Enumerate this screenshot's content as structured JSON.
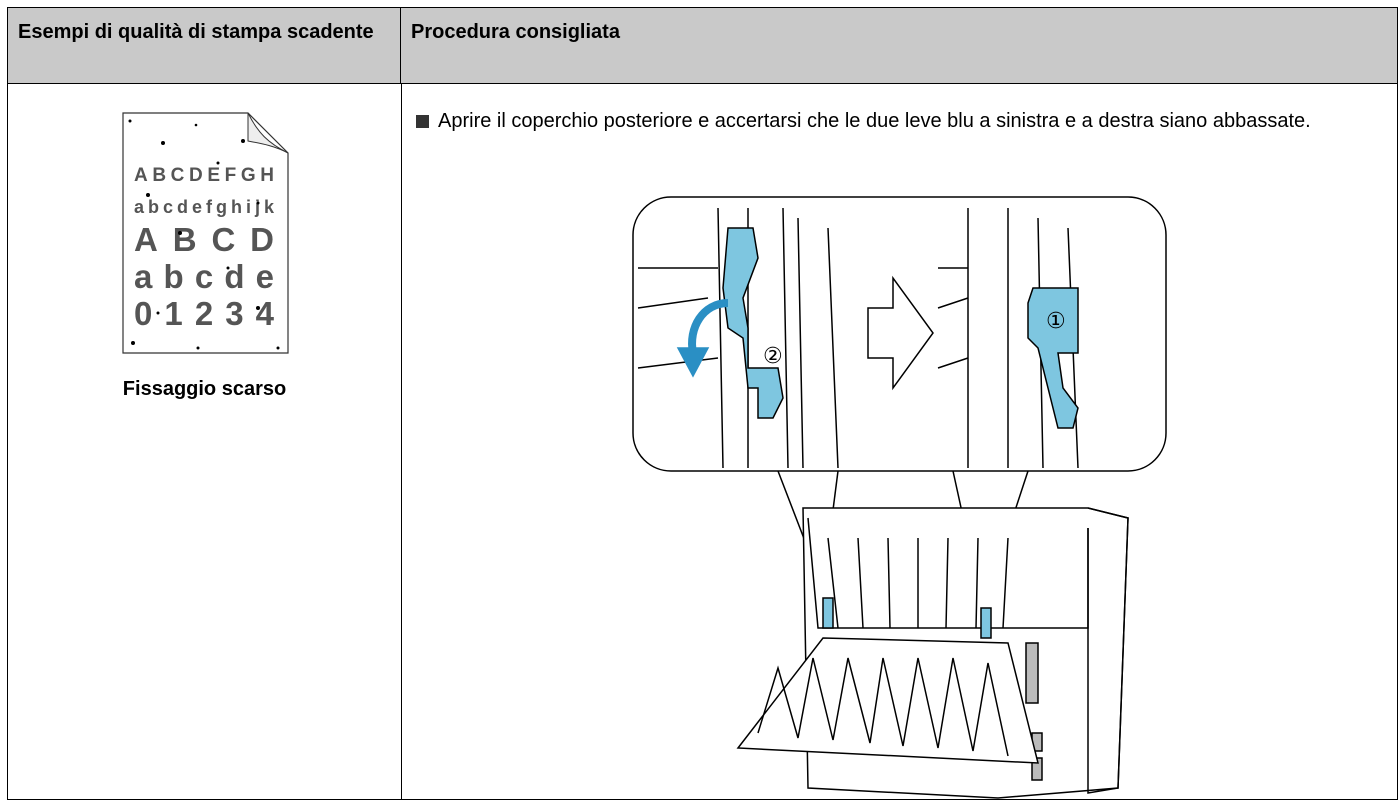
{
  "table": {
    "headers": [
      "Esempi di qualità di stampa scadente",
      "Procedura consigliata"
    ],
    "rows": [
      [
        {
          "sample_lines": [
            "ABCDEFGH",
            "abcdefghijk",
            "ABCD",
            "abcde",
            "01234"
          ],
          "caption": "Fissaggio scarso"
        },
        {
          "step": "Aprire il coperchio posteriore e accertarsi che le due leve blu a sinistra e a destra siano abbassate.",
          "callout_labels": [
            "②",
            "①"
          ]
        }
      ]
    ]
  }
}
